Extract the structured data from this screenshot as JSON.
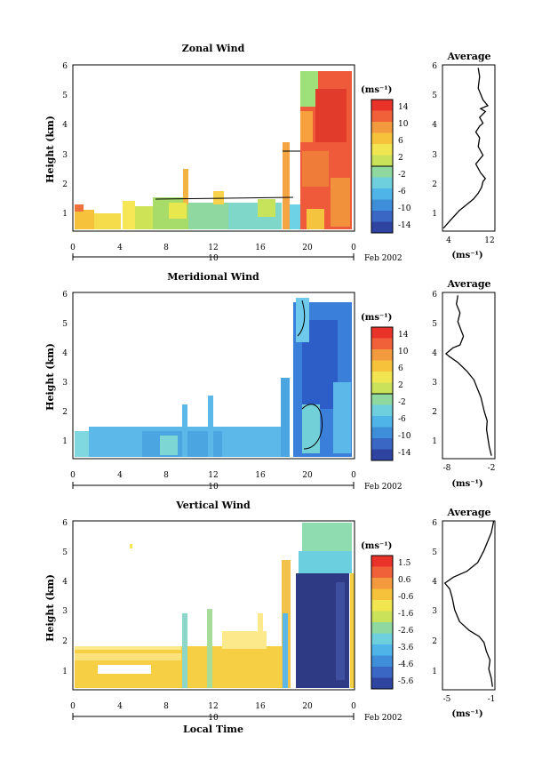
{
  "page": {
    "xlabel": "Local Time",
    "date_day": "10",
    "date_month": "Feb 2002",
    "x_ticks": [
      "0",
      "4",
      "8",
      "12",
      "16",
      "20",
      "0"
    ],
    "height_ticks": [
      "1",
      "2",
      "3",
      "4",
      "5",
      "6"
    ]
  },
  "chart_data": [
    {
      "type": "heatmap",
      "title": "Zonal Wind",
      "ylabel": "Height (km)",
      "xlabel": "",
      "xlim": [
        0,
        24
      ],
      "ylim": [
        0.3,
        6
      ],
      "colorbar": {
        "label": "(ms⁻¹)",
        "ticks": [
          "14",
          "10",
          "6",
          "2",
          "-2",
          "-6",
          "-10",
          "-14"
        ]
      },
      "colors": {
        "low": "#2b3a8c",
        "high": "#e8322a"
      }
    },
    {
      "type": "line",
      "title": "Average",
      "xlabel": "(ms⁻¹)",
      "x_ticks": [
        "4",
        "12"
      ],
      "xlim": [
        2,
        13
      ],
      "ylim": [
        0.3,
        6
      ],
      "x": [
        2.2,
        3.8,
        5.5,
        7.0,
        8.5,
        9.5,
        10.2,
        10.5,
        11.0,
        10.0,
        9.0,
        10.5,
        9.5,
        9.8,
        9.0,
        9.8,
        10.5,
        9.8,
        11.0,
        10.0,
        11.5,
        10.5,
        10.0,
        9.5,
        9.8,
        9.5
      ],
      "y": [
        0.4,
        0.7,
        1.0,
        1.2,
        1.4,
        1.6,
        1.8,
        2.0,
        2.1,
        2.3,
        2.6,
        2.9,
        3.2,
        3.5,
        3.7,
        3.9,
        4.0,
        4.2,
        4.4,
        4.5,
        4.6,
        4.8,
        5.0,
        5.2,
        5.6,
        5.9
      ]
    },
    {
      "type": "heatmap",
      "title": "Meridional Wind",
      "ylabel": "Height (km)",
      "xlabel": "",
      "xlim": [
        0,
        24
      ],
      "ylim": [
        0.3,
        6
      ],
      "colorbar": {
        "label": "(ms⁻¹)",
        "ticks": [
          "14",
          "10",
          "6",
          "2",
          "-2",
          "-6",
          "-10",
          "-14"
        ]
      }
    },
    {
      "type": "line",
      "title": "Average",
      "xlabel": "(ms⁻¹)",
      "x_ticks": [
        "-8",
        "-2"
      ],
      "xlim": [
        -9,
        -1.5
      ],
      "ylim": [
        0.3,
        6
      ],
      "x": [
        -2.0,
        -2.3,
        -2.5,
        -2.7,
        -2.6,
        -3.0,
        -3.2,
        -3.5,
        -4.0,
        -4.5,
        -5.5,
        -6.8,
        -8.0,
        -8.5,
        -7.5,
        -6.5,
        -6.0,
        -6.5,
        -6.8,
        -6.5,
        -7.0,
        -6.8
      ],
      "y": [
        0.4,
        0.7,
        1.0,
        1.3,
        1.6,
        1.9,
        2.1,
        2.4,
        2.7,
        3.0,
        3.3,
        3.6,
        3.8,
        3.9,
        4.1,
        4.2,
        4.5,
        4.8,
        5.0,
        5.3,
        5.6,
        5.9
      ]
    },
    {
      "type": "heatmap",
      "title": "Vertical Wind",
      "ylabel": "Height (km)",
      "xlabel": "Local Time",
      "xlim": [
        0,
        24
      ],
      "ylim": [
        0.3,
        6
      ],
      "colorbar": {
        "label": "(ms⁻¹)",
        "ticks": [
          "1.5",
          "0.6",
          "-0.6",
          "-1.6",
          "-2.6",
          "-3.6",
          "-4.6",
          "-5.6"
        ]
      }
    },
    {
      "type": "line",
      "title": "Average",
      "xlabel": "(ms⁻¹)",
      "x_ticks": [
        "-5",
        "-1"
      ],
      "xlim": [
        -5.2,
        -0.9
      ],
      "ylim": [
        0.3,
        6
      ],
      "x": [
        -1.1,
        -1.2,
        -1.4,
        -1.3,
        -1.6,
        -1.8,
        -2.2,
        -3.0,
        -3.8,
        -4.2,
        -4.4,
        -4.6,
        -5.0,
        -4.3,
        -3.2,
        -2.3,
        -1.8,
        -1.5,
        -1.2,
        -1.1,
        -1.0
      ],
      "y": [
        0.4,
        0.7,
        1.0,
        1.3,
        1.6,
        1.9,
        2.1,
        2.3,
        2.6,
        3.0,
        3.4,
        3.7,
        3.9,
        4.1,
        4.3,
        4.6,
        5.0,
        5.3,
        5.6,
        5.8,
        6.0
      ]
    }
  ]
}
